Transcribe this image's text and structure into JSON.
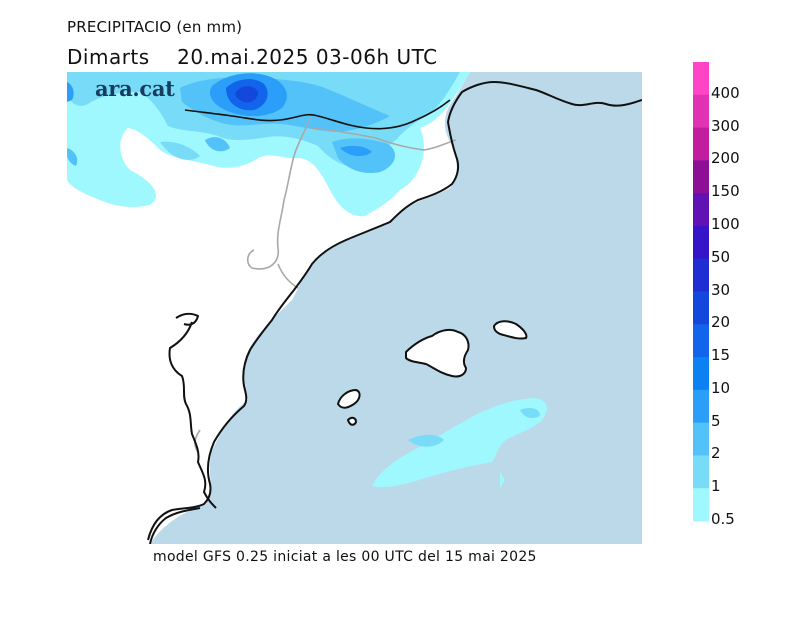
{
  "header": {
    "title": "PRECIPITACIO (en mm)",
    "subtitle": "Dimarts    20.mai.2025 03-06h UTC"
  },
  "logo": {
    "text": "ara.cat"
  },
  "footer": {
    "text": "model GFS 0.25 iniciat a les 00 UTC del 15 mai 2025"
  },
  "legend": {
    "unit": "mm",
    "levels": [
      {
        "label": "400",
        "color": "#ff44c8"
      },
      {
        "label": "300",
        "color": "#e232b4"
      },
      {
        "label": "200",
        "color": "#c21d9e"
      },
      {
        "label": "150",
        "color": "#8c0f96"
      },
      {
        "label": "100",
        "color": "#6012b4"
      },
      {
        "label": "50",
        "color": "#3614c8"
      },
      {
        "label": "30",
        "color": "#1e2ed2"
      },
      {
        "label": "20",
        "color": "#1448dc"
      },
      {
        "label": "15",
        "color": "#1264ea"
      },
      {
        "label": "10",
        "color": "#0c82f2"
      },
      {
        "label": "5",
        "color": "#2a9ef8"
      },
      {
        "label": "2",
        "color": "#52c2f8"
      },
      {
        "label": "1",
        "color": "#78dcf8"
      },
      {
        "label": "0.5",
        "color": "#a0f8ff"
      }
    ]
  },
  "map": {
    "sea_color": "#bcd9ea",
    "land_color": "#ffffff",
    "coastline_color": "#111111",
    "border_color": "#a8a8a8"
  }
}
